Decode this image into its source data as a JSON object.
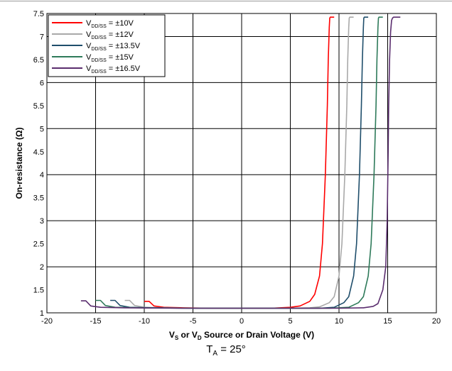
{
  "chart_data": {
    "type": "line",
    "title": "",
    "xlabel": {
      "a": "V",
      "a_sub": "S",
      "b": " or V",
      "b_sub": "D",
      "c": " Source or Drain Voltage (V)"
    },
    "ylabel": "On-resistance (Ω)",
    "xlim": [
      -20,
      20
    ],
    "ylim": [
      1,
      7.5
    ],
    "x_ticks": [
      "-20",
      "-15",
      "-10",
      "-5",
      "0",
      "5",
      "10",
      "15",
      "20"
    ],
    "y_ticks": [
      "1",
      "1.5",
      "2",
      "2.5",
      "3",
      "3.5",
      "4",
      "4.5",
      "5",
      "5.5",
      "6",
      "6.5",
      "7",
      "7.5"
    ],
    "grid": true,
    "legend_position": "top-left",
    "series": [
      {
        "name_main": "V",
        "name_sub": "DD/SS",
        "name_rest": " = ±10V",
        "color": "#ff0000",
        "x": [
          -10.0,
          -9.5,
          -9.0,
          -8.0,
          -6.0,
          -3.0,
          0.0,
          3.0,
          5.0,
          6.0,
          7.0,
          7.5,
          8.0,
          8.3,
          8.6,
          8.8,
          8.9,
          9.0,
          9.05,
          9.1,
          9.2,
          9.4,
          9.5
        ],
        "y": [
          1.25,
          1.25,
          1.15,
          1.12,
          1.11,
          1.1,
          1.1,
          1.1,
          1.12,
          1.15,
          1.25,
          1.4,
          1.8,
          2.5,
          4.0,
          5.5,
          6.5,
          7.2,
          7.4,
          7.42,
          7.42,
          7.42,
          7.42
        ]
      },
      {
        "name_main": "V",
        "name_sub": "DD/SS",
        "name_rest": " = ±12V",
        "color": "#a9a9a9",
        "x": [
          -12.0,
          -11.5,
          -11.0,
          -10.0,
          -8.0,
          -5.0,
          0.0,
          5.0,
          7.0,
          8.0,
          9.0,
          9.5,
          10.0,
          10.3,
          10.6,
          10.8,
          10.9,
          11.0,
          11.05,
          11.1,
          11.2,
          11.4,
          11.5
        ],
        "y": [
          1.27,
          1.27,
          1.16,
          1.12,
          1.11,
          1.1,
          1.1,
          1.1,
          1.11,
          1.13,
          1.22,
          1.35,
          1.8,
          2.5,
          4.0,
          5.5,
          6.5,
          7.2,
          7.4,
          7.42,
          7.42,
          7.42,
          7.42
        ]
      },
      {
        "name_main": "V",
        "name_sub": "DD/SS",
        "name_rest": " = ±13.5V",
        "color": "#1f4e6b",
        "x": [
          -13.5,
          -13.0,
          -12.5,
          -11.5,
          -9.0,
          -5.0,
          0.0,
          5.0,
          8.0,
          9.5,
          10.5,
          11.0,
          11.5,
          11.8,
          12.1,
          12.3,
          12.4,
          12.5,
          12.55,
          12.6,
          12.7,
          12.9,
          13.0
        ],
        "y": [
          1.27,
          1.27,
          1.16,
          1.12,
          1.11,
          1.1,
          1.1,
          1.1,
          1.1,
          1.12,
          1.22,
          1.35,
          1.8,
          2.5,
          4.0,
          5.5,
          6.5,
          7.2,
          7.4,
          7.42,
          7.42,
          7.42,
          7.42
        ]
      },
      {
        "name_main": "V",
        "name_sub": "DD/SS",
        "name_rest": " = ±15V",
        "color": "#2e7a5a",
        "x": [
          -15.0,
          -14.5,
          -14.0,
          -13.0,
          -10.0,
          -5.0,
          0.0,
          5.0,
          9.0,
          11.0,
          12.0,
          12.5,
          13.0,
          13.3,
          13.6,
          13.8,
          13.9,
          14.0,
          14.05,
          14.1,
          14.2,
          14.4,
          14.5
        ],
        "y": [
          1.27,
          1.27,
          1.16,
          1.12,
          1.11,
          1.1,
          1.1,
          1.1,
          1.1,
          1.12,
          1.22,
          1.35,
          1.8,
          2.5,
          4.0,
          5.5,
          6.5,
          7.2,
          7.4,
          7.42,
          7.42,
          7.42,
          7.42
        ]
      },
      {
        "name_main": "V",
        "name_sub": "DD/SS",
        "name_rest": " = ±16.5V",
        "color": "#5a2d6e",
        "x": [
          -16.5,
          -16.0,
          -15.5,
          -14.5,
          -12.0,
          -6.0,
          0.0,
          6.0,
          10.0,
          12.5,
          13.5,
          14.0,
          14.5,
          14.8,
          14.95,
          15.05,
          15.1,
          15.2,
          15.3,
          15.4,
          15.5,
          15.6,
          15.8,
          16.0,
          16.3
        ],
        "y": [
          1.26,
          1.26,
          1.15,
          1.12,
          1.11,
          1.1,
          1.1,
          1.1,
          1.1,
          1.11,
          1.14,
          1.2,
          1.5,
          2.0,
          3.0,
          4.5,
          5.5,
          6.5,
          7.1,
          7.35,
          7.4,
          7.42,
          7.42,
          7.42,
          7.42
        ]
      }
    ]
  },
  "caption": {
    "main": "T",
    "sub": "A",
    "rest": " = 25°"
  }
}
